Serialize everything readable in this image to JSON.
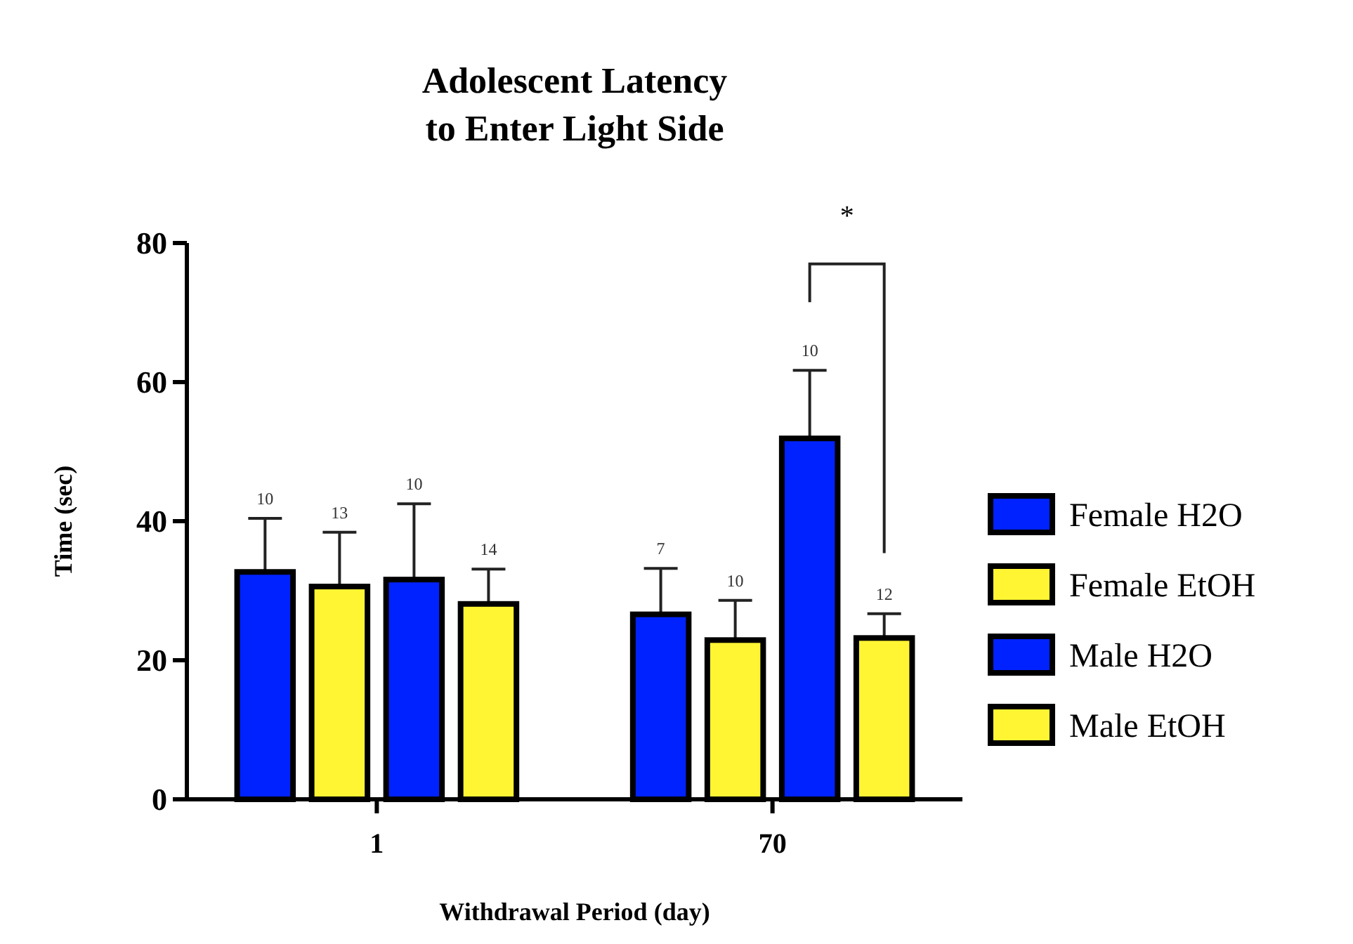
{
  "chart_data": {
    "type": "bar",
    "title": "Adolescent Latency\nto Enter Light Side",
    "xlabel": "Withdrawal Period (day)",
    "ylabel": "Time (sec)",
    "categories": [
      "1",
      "70"
    ],
    "ylim": [
      0,
      80
    ],
    "yticks": [
      0,
      20,
      40,
      60,
      80
    ],
    "grid": false,
    "legend": "right",
    "series": [
      {
        "name": "Female H2O",
        "color": "#0022ff",
        "values": [
          32.7,
          26.6
        ],
        "errors": [
          7.7,
          6.6
        ]
      },
      {
        "name": "Female EtOH",
        "color": "#fff533",
        "values": [
          30.6,
          22.9
        ],
        "errors": [
          7.8,
          5.7
        ]
      },
      {
        "name": "Male H2O",
        "color": "#0022ff",
        "values": [
          31.6,
          51.9
        ],
        "errors": [
          10.9,
          9.8
        ]
      },
      {
        "name": "Male EtOH",
        "color": "#fff533",
        "values": [
          28.1,
          23.2
        ],
        "errors": [
          5.0,
          3.5
        ]
      }
    ],
    "annotations": [
      "10",
      "13",
      "10",
      "14",
      "7",
      "10",
      "10",
      "12",
      "*"
    ]
  }
}
